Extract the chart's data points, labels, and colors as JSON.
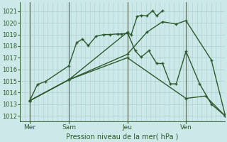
{
  "background_color": "#cce8e8",
  "grid_color": "#aacfcf",
  "line_color": "#2d5a2d",
  "title": "Pression niveau de la mer( hPa )",
  "ylim": [
    1011.5,
    1021.8
  ],
  "xlim": [
    0.0,
    10.5
  ],
  "yticks": [
    1012,
    1013,
    1014,
    1015,
    1016,
    1017,
    1018,
    1019,
    1020,
    1021
  ],
  "x_tick_positions": [
    0.5,
    2.5,
    5.5,
    8.5
  ],
  "x_tick_labels": [
    "Mer",
    "Sam",
    "Jeu",
    "Ven"
  ],
  "vline_positions": [
    0.5,
    2.5,
    5.5,
    8.5
  ],
  "series": [
    {
      "x": [
        0.5,
        0.9,
        1.3,
        2.5,
        2.9,
        3.2,
        3.5,
        3.9,
        4.3,
        4.6,
        5.0,
        5.2,
        5.5,
        5.7,
        6.0,
        6.2,
        6.5,
        6.8,
        7.0,
        7.3
      ],
      "y": [
        1013.3,
        1014.7,
        1014.95,
        1016.3,
        1018.3,
        1018.6,
        1018.05,
        1018.85,
        1019.0,
        1019.0,
        1019.05,
        1019.05,
        1019.1,
        1019.0,
        1020.55,
        1020.65,
        1020.6,
        1021.05,
        1020.6,
        1021.05
      ]
    },
    {
      "x": [
        0.5,
        2.5,
        5.5,
        5.9,
        6.2,
        6.6,
        7.0,
        7.3,
        7.7,
        8.0,
        8.5,
        9.2,
        9.8,
        10.5
      ],
      "y": [
        1013.3,
        1015.1,
        1019.2,
        1017.6,
        1017.05,
        1017.6,
        1016.5,
        1016.5,
        1014.75,
        1014.75,
        1017.55,
        1014.75,
        1013.0,
        1012.0
      ]
    },
    {
      "x": [
        0.5,
        2.5,
        5.5,
        6.5,
        7.3,
        8.0,
        8.5,
        9.8,
        10.5
      ],
      "y": [
        1013.3,
        1015.1,
        1017.3,
        1019.2,
        1020.1,
        1019.9,
        1020.2,
        1016.8,
        1012.1
      ]
    },
    {
      "x": [
        0.5,
        2.5,
        5.5,
        8.5,
        9.5,
        10.5
      ],
      "y": [
        1013.3,
        1015.1,
        1017.0,
        1013.5,
        1013.7,
        1012.0
      ]
    }
  ],
  "figsize": [
    3.2,
    2.0
  ],
  "dpi": 100
}
